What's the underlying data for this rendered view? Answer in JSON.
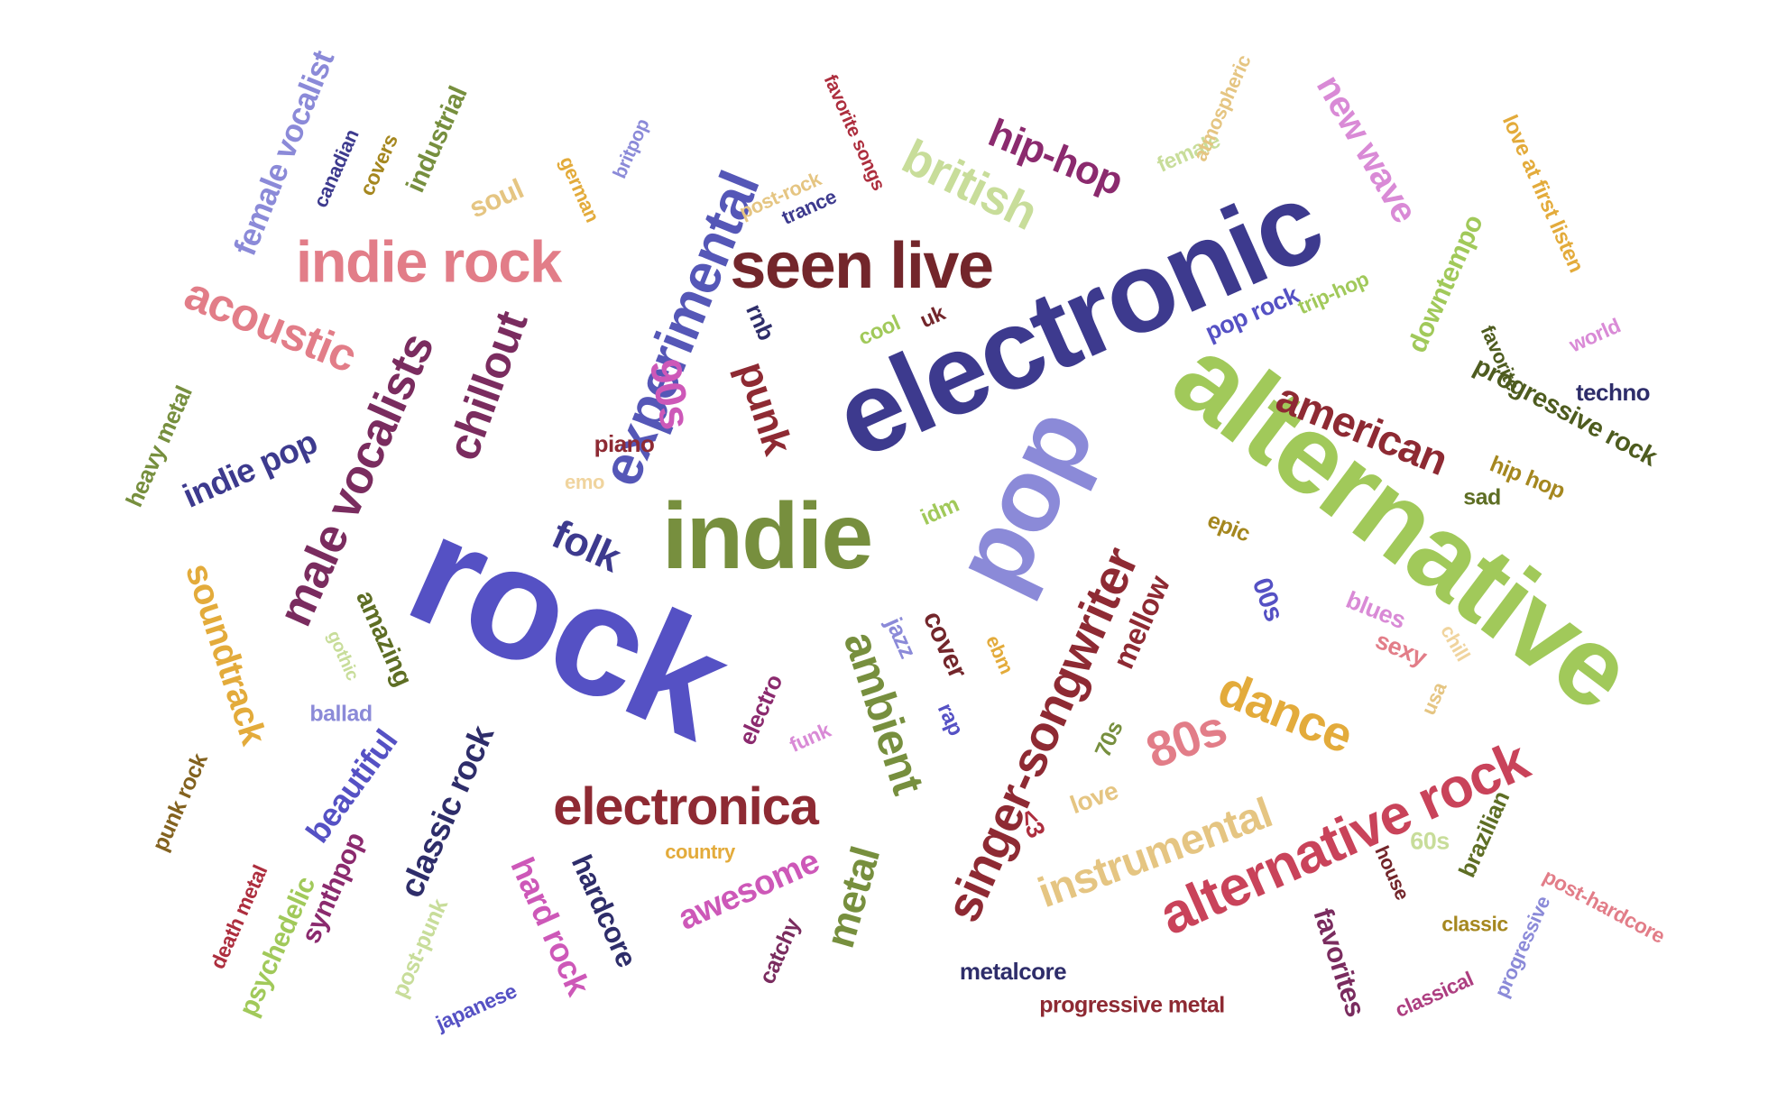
{
  "cloud": {
    "words": [
      {
        "text": "rock",
        "color": "#5551c4"
      },
      {
        "text": "electronic",
        "color": "#3d3a8e"
      },
      {
        "text": "alternative",
        "color": "#a1c95a"
      },
      {
        "text": "indie",
        "color": "#778f3e"
      },
      {
        "text": "pop",
        "color": "#8b8ad8"
      },
      {
        "text": "seen live",
        "color": "#73262b"
      },
      {
        "text": "experimental",
        "color": "#5557b7"
      },
      {
        "text": "singer-songwriter",
        "color": "#8e2a33"
      },
      {
        "text": "indie rock",
        "color": "#e27d88"
      },
      {
        "text": "alternative rock",
        "color": "#c9435a"
      },
      {
        "text": "electronica",
        "color": "#8e2a33"
      },
      {
        "text": "instrumental",
        "color": "#e5c582"
      },
      {
        "text": "male vocalists",
        "color": "#7a2c5f"
      },
      {
        "text": "chillout",
        "color": "#7a2c5f"
      },
      {
        "text": "dance",
        "color": "#e3ab3b"
      },
      {
        "text": "80s",
        "color": "#e27d88"
      },
      {
        "text": "ambient",
        "color": "#778f3e"
      },
      {
        "text": "american",
        "color": "#8e2a33"
      },
      {
        "text": "british",
        "color": "#c8dd9a"
      },
      {
        "text": "acoustic",
        "color": "#e27d88"
      },
      {
        "text": "hip-hop",
        "color": "#8b2a6e"
      },
      {
        "text": "new wave",
        "color": "#d98ad6"
      },
      {
        "text": "female vocalist",
        "color": "#8b8ad8"
      },
      {
        "text": "soundtrack",
        "color": "#e3ab3b"
      },
      {
        "text": "metal",
        "color": "#778f3e"
      },
      {
        "text": "90s",
        "color": "#cd58b8"
      },
      {
        "text": "punk",
        "color": "#8e2a33"
      },
      {
        "text": "folk",
        "color": "#3d3a8e"
      },
      {
        "text": "indie pop",
        "color": "#3d3a8e"
      },
      {
        "text": "classic rock",
        "color": "#2e2d6a"
      },
      {
        "text": "hard rock",
        "color": "#cd58b8"
      },
      {
        "text": "hardcore",
        "color": "#2e2d6a"
      },
      {
        "text": "awesome",
        "color": "#cd58b8"
      },
      {
        "text": "beautiful",
        "color": "#5551c4"
      },
      {
        "text": "amazing",
        "color": "#5e6e24"
      },
      {
        "text": "psychedelic",
        "color": "#a1c95a"
      },
      {
        "text": "synthpop",
        "color": "#8b2a6e"
      },
      {
        "text": "heavy metal",
        "color": "#778f3e"
      },
      {
        "text": "punk rock",
        "color": "#83621f"
      },
      {
        "text": "death metal",
        "color": "#ad2e3e"
      },
      {
        "text": "post-punk",
        "color": "#c8dd9a"
      },
      {
        "text": "japanese",
        "color": "#5551c4"
      },
      {
        "text": "catchy",
        "color": "#7a2c5f"
      },
      {
        "text": "metalcore",
        "color": "#2e2d6a"
      },
      {
        "text": "progressive metal",
        "color": "#8e2a33"
      },
      {
        "text": "favorites",
        "color": "#7a2c5f"
      },
      {
        "text": "classical",
        "color": "#ad3e80"
      },
      {
        "text": "progressive",
        "color": "#8b8ad8"
      },
      {
        "text": "post-hardcore",
        "color": "#e27d88"
      },
      {
        "text": "classic",
        "color": "#a5871f"
      },
      {
        "text": "brazilian",
        "color": "#5e6e24"
      },
      {
        "text": "house",
        "color": "#73262b"
      },
      {
        "text": "60s",
        "color": "#c8dd9a"
      },
      {
        "text": "love",
        "color": "#e5c582"
      },
      {
        "text": "<3",
        "color": "#ad2e3e"
      },
      {
        "text": "70s",
        "color": "#778f3e"
      },
      {
        "text": "mellow",
        "color": "#8e2a33"
      },
      {
        "text": "00s",
        "color": "#5551c4"
      },
      {
        "text": "epic",
        "color": "#a5871f"
      },
      {
        "text": "blues",
        "color": "#d98ad6"
      },
      {
        "text": "sexy",
        "color": "#e27d88"
      },
      {
        "text": "chill",
        "color": "#f0d49e"
      },
      {
        "text": "usa",
        "color": "#e5c582"
      },
      {
        "text": "sad",
        "color": "#5e6e24"
      },
      {
        "text": "hip hop",
        "color": "#a5871f"
      },
      {
        "text": "progressive rock",
        "color": "#4e5c1f"
      },
      {
        "text": "techno",
        "color": "#2e2d6a"
      },
      {
        "text": "world",
        "color": "#d98ad6"
      },
      {
        "text": "favorite",
        "color": "#4e5c1f"
      },
      {
        "text": "downtempo",
        "color": "#a1c95a"
      },
      {
        "text": "love at first listen",
        "color": "#e3ab3b"
      },
      {
        "text": "trip-hop",
        "color": "#a1c95a"
      },
      {
        "text": "pop rock",
        "color": "#5551c4"
      },
      {
        "text": "female",
        "color": "#c8dd9a"
      },
      {
        "text": "atmospheric",
        "color": "#e5c582"
      },
      {
        "text": "favorite songs",
        "color": "#ad2e3e"
      },
      {
        "text": "post-rock",
        "color": "#e5c582"
      },
      {
        "text": "trance",
        "color": "#3d3a8e"
      },
      {
        "text": "britpop",
        "color": "#8b8ad8"
      },
      {
        "text": "german",
        "color": "#e3ab3b"
      },
      {
        "text": "soul",
        "color": "#e5c582"
      },
      {
        "text": "covers",
        "color": "#a5871f"
      },
      {
        "text": "canadian",
        "color": "#3d3a8e"
      },
      {
        "text": "industrial",
        "color": "#778f3e"
      },
      {
        "text": "rnb",
        "color": "#2e2d6a"
      },
      {
        "text": "cool",
        "color": "#a1c95a"
      },
      {
        "text": "uk",
        "color": "#73262b"
      },
      {
        "text": "piano",
        "color": "#8e2a33"
      },
      {
        "text": "emo",
        "color": "#f0d49e"
      },
      {
        "text": "idm",
        "color": "#a1c95a"
      },
      {
        "text": "jazz",
        "color": "#8b8ad8"
      },
      {
        "text": "cover",
        "color": "#73262b"
      },
      {
        "text": "ebm",
        "color": "#e3ab3b"
      },
      {
        "text": "rap",
        "color": "#5551c4"
      },
      {
        "text": "funk",
        "color": "#d98ad6"
      },
      {
        "text": "electro",
        "color": "#8b2a6e"
      },
      {
        "text": "country",
        "color": "#e3ab3b"
      },
      {
        "text": "ballad",
        "color": "#8b8ad8"
      },
      {
        "text": "gothic",
        "color": "#c8dd9a"
      }
    ]
  }
}
